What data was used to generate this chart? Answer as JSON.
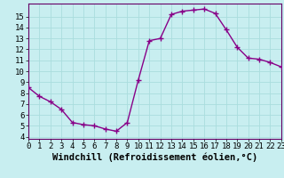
{
  "x": [
    0,
    1,
    2,
    3,
    4,
    5,
    6,
    7,
    8,
    9,
    10,
    11,
    12,
    13,
    14,
    15,
    16,
    17,
    18,
    19,
    20,
    21,
    22,
    23
  ],
  "y": [
    8.5,
    7.7,
    7.2,
    6.5,
    5.3,
    5.1,
    5.0,
    4.7,
    4.5,
    5.3,
    9.2,
    12.8,
    13.0,
    15.2,
    15.5,
    15.6,
    15.7,
    15.3,
    13.8,
    12.2,
    11.2,
    11.1,
    10.8,
    10.4
  ],
  "line_color": "#880088",
  "marker": "+",
  "markersize": 4,
  "linewidth": 1.0,
  "xlabel": "Windchill (Refroidissement éolien,°C)",
  "bg_color": "#c8eef0",
  "grid_color": "#aadddd",
  "xlim": [
    0,
    23
  ],
  "ylim": [
    3.8,
    16.2
  ],
  "xticks": [
    0,
    1,
    2,
    3,
    4,
    5,
    6,
    7,
    8,
    9,
    10,
    11,
    12,
    13,
    14,
    15,
    16,
    17,
    18,
    19,
    20,
    21,
    22,
    23
  ],
  "yticks": [
    4,
    5,
    6,
    7,
    8,
    9,
    10,
    11,
    12,
    13,
    14,
    15
  ],
  "tick_fontsize": 6.5,
  "xlabel_fontsize": 7.5
}
